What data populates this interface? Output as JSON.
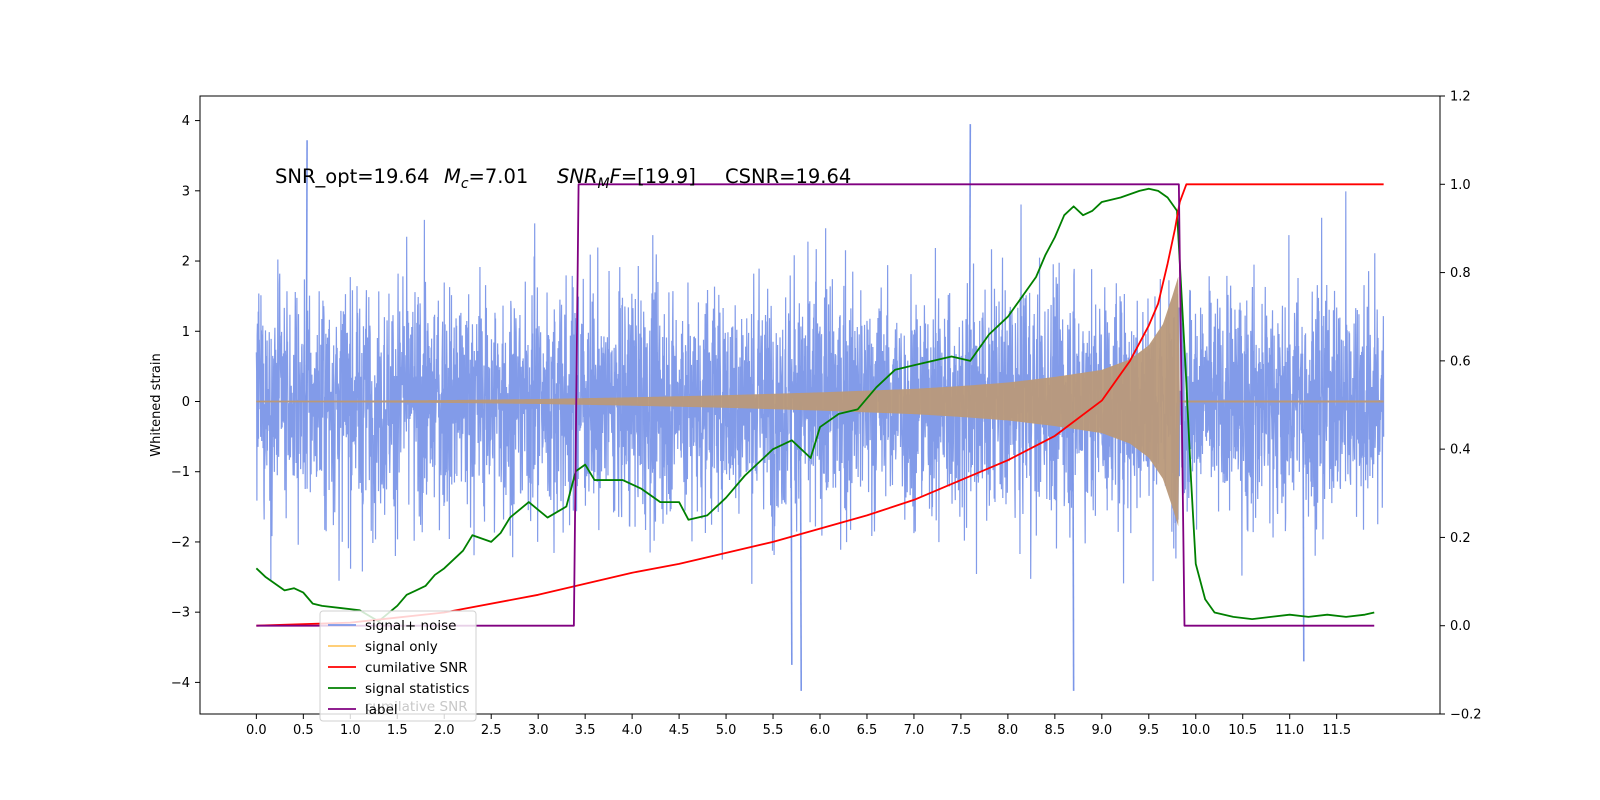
{
  "chart_data": {
    "type": "line",
    "ylabel": "Whitened strain",
    "annotation": {
      "snr_opt": "SNR_opt=19.64",
      "mc_symbol": "M",
      "mc_sub": "c",
      "mc_value": "=7.01",
      "snrmf_symbol": "SNR",
      "snrmf_sub": "M",
      "snrmf_tail": "F",
      "snrmf_value": "=[19.9]",
      "csnr": "CSNR=19.64"
    },
    "x_ticks": [
      "0.0",
      "0.5",
      "1.0",
      "1.5",
      "2.0",
      "2.5",
      "3.0",
      "3.5",
      "4.0",
      "4.5",
      "5.0",
      "5.5",
      "6.0",
      "6.5",
      "7.0",
      "7.5",
      "8.0",
      "8.5",
      "9.0",
      "9.5",
      "10.0",
      "10.5",
      "11.0",
      "11.5"
    ],
    "y_left_ticks": [
      "4",
      "3",
      "2",
      "1",
      "0",
      "−1",
      "−2",
      "−3",
      "−4"
    ],
    "y_right_ticks": [
      "1.2",
      "1.0",
      "0.8",
      "0.6",
      "0.4",
      "0.2",
      "0.0",
      "−0.2"
    ],
    "xlim": [
      -0.6,
      12.6
    ],
    "ylim_left": [
      -4.45,
      4.35
    ],
    "ylim_right": [
      -0.2,
      1.2
    ],
    "legend": {
      "position": "lower left",
      "entries": [
        {
          "label": "signal+ noise",
          "color": "#7b96e8"
        },
        {
          "label": "signal only",
          "color": "#ffc864"
        },
        {
          "label": "cumilative SNR",
          "color": "#ff0000"
        },
        {
          "label": "signal statistics",
          "color": "#008000"
        },
        {
          "label": "label",
          "color": "#800080"
        }
      ],
      "ghost_text": "cumilative SNR"
    },
    "series": [
      {
        "name": "signal+ noise",
        "axis": "left",
        "color": "#7b96e8",
        "x_range": [
          0.0,
          12.0
        ],
        "approx_envelope": [
          -2.5,
          2.5
        ],
        "notable_peaks": [
          [
            0.54,
            3.72
          ],
          [
            7.6,
            3.95
          ],
          [
            8.7,
            -4.12
          ],
          [
            5.8,
            -4.12
          ],
          [
            5.7,
            -3.75
          ],
          [
            11.15,
            -3.7
          ]
        ]
      },
      {
        "name": "signal only",
        "axis": "left",
        "color": "#b9997a",
        "x_range": [
          0.0,
          12.0
        ],
        "chirp_end": 9.83,
        "envelope": [
          [
            0.0,
            0.01
          ],
          [
            1.0,
            0.012
          ],
          [
            2.0,
            0.02
          ],
          [
            3.0,
            0.035
          ],
          [
            4.0,
            0.06
          ],
          [
            5.0,
            0.09
          ],
          [
            6.0,
            0.13
          ],
          [
            7.0,
            0.18
          ],
          [
            7.5,
            0.22
          ],
          [
            8.0,
            0.27
          ],
          [
            8.5,
            0.35
          ],
          [
            9.0,
            0.45
          ],
          [
            9.3,
            0.6
          ],
          [
            9.5,
            0.8
          ],
          [
            9.65,
            1.1
          ],
          [
            9.75,
            1.5
          ],
          [
            9.83,
            1.85
          ]
        ]
      },
      {
        "name": "cumilative SNR",
        "axis": "right",
        "color": "#ff0000",
        "points": [
          [
            0.0,
            0.0
          ],
          [
            1.0,
            0.007
          ],
          [
            2.0,
            0.03
          ],
          [
            3.0,
            0.07
          ],
          [
            3.5,
            0.095
          ],
          [
            4.0,
            0.12
          ],
          [
            4.5,
            0.14
          ],
          [
            5.0,
            0.165
          ],
          [
            5.5,
            0.19
          ],
          [
            6.0,
            0.22
          ],
          [
            6.5,
            0.25
          ],
          [
            7.0,
            0.285
          ],
          [
            7.5,
            0.33
          ],
          [
            8.0,
            0.375
          ],
          [
            8.5,
            0.43
          ],
          [
            9.0,
            0.51
          ],
          [
            9.3,
            0.6
          ],
          [
            9.5,
            0.68
          ],
          [
            9.6,
            0.73
          ],
          [
            9.7,
            0.82
          ],
          [
            9.78,
            0.9
          ],
          [
            9.83,
            0.96
          ],
          [
            9.9,
            1.0
          ],
          [
            12.0,
            1.0
          ]
        ]
      },
      {
        "name": "signal statistics",
        "axis": "right",
        "color": "#008000",
        "points": [
          [
            0.0,
            0.13
          ],
          [
            0.1,
            0.11
          ],
          [
            0.2,
            0.095
          ],
          [
            0.3,
            0.08
          ],
          [
            0.4,
            0.085
          ],
          [
            0.5,
            0.075
          ],
          [
            0.6,
            0.05
          ],
          [
            0.7,
            0.045
          ],
          [
            0.9,
            0.04
          ],
          [
            1.1,
            0.035
          ],
          [
            1.3,
            0.01
          ],
          [
            1.5,
            0.045
          ],
          [
            1.6,
            0.07
          ],
          [
            1.7,
            0.08
          ],
          [
            1.8,
            0.09
          ],
          [
            1.9,
            0.115
          ],
          [
            2.0,
            0.13
          ],
          [
            2.2,
            0.17
          ],
          [
            2.3,
            0.205
          ],
          [
            2.5,
            0.19
          ],
          [
            2.6,
            0.21
          ],
          [
            2.7,
            0.245
          ],
          [
            2.9,
            0.28
          ],
          [
            3.1,
            0.245
          ],
          [
            3.3,
            0.27
          ],
          [
            3.4,
            0.35
          ],
          [
            3.5,
            0.365
          ],
          [
            3.6,
            0.33
          ],
          [
            3.9,
            0.33
          ],
          [
            4.1,
            0.31
          ],
          [
            4.3,
            0.28
          ],
          [
            4.5,
            0.28
          ],
          [
            4.6,
            0.24
          ],
          [
            4.8,
            0.25
          ],
          [
            5.0,
            0.29
          ],
          [
            5.2,
            0.34
          ],
          [
            5.4,
            0.38
          ],
          [
            5.5,
            0.4
          ],
          [
            5.7,
            0.42
          ],
          [
            5.9,
            0.38
          ],
          [
            6.0,
            0.45
          ],
          [
            6.2,
            0.48
          ],
          [
            6.4,
            0.49
          ],
          [
            6.6,
            0.54
          ],
          [
            6.8,
            0.58
          ],
          [
            7.0,
            0.59
          ],
          [
            7.2,
            0.6
          ],
          [
            7.4,
            0.61
          ],
          [
            7.6,
            0.6
          ],
          [
            7.8,
            0.66
          ],
          [
            8.0,
            0.7
          ],
          [
            8.2,
            0.76
          ],
          [
            8.3,
            0.79
          ],
          [
            8.4,
            0.84
          ],
          [
            8.5,
            0.88
          ],
          [
            8.6,
            0.93
          ],
          [
            8.7,
            0.95
          ],
          [
            8.8,
            0.93
          ],
          [
            8.9,
            0.94
          ],
          [
            9.0,
            0.96
          ],
          [
            9.2,
            0.97
          ],
          [
            9.4,
            0.985
          ],
          [
            9.5,
            0.99
          ],
          [
            9.6,
            0.985
          ],
          [
            9.7,
            0.97
          ],
          [
            9.8,
            0.94
          ],
          [
            9.9,
            0.55
          ],
          [
            9.95,
            0.33
          ],
          [
            10.0,
            0.14
          ],
          [
            10.1,
            0.06
          ],
          [
            10.2,
            0.03
          ],
          [
            10.4,
            0.02
          ],
          [
            10.6,
            0.015
          ],
          [
            10.8,
            0.02
          ],
          [
            11.0,
            0.025
          ],
          [
            11.2,
            0.02
          ],
          [
            11.4,
            0.025
          ],
          [
            11.6,
            0.02
          ],
          [
            11.8,
            0.025
          ],
          [
            11.9,
            0.03
          ]
        ]
      },
      {
        "name": "label",
        "axis": "right",
        "color": "#800080",
        "points": [
          [
            0.0,
            0.0
          ],
          [
            3.38,
            0.0
          ],
          [
            3.43,
            1.0
          ],
          [
            9.82,
            1.0
          ],
          [
            9.88,
            0.0
          ],
          [
            11.9,
            0.0
          ]
        ]
      }
    ]
  }
}
